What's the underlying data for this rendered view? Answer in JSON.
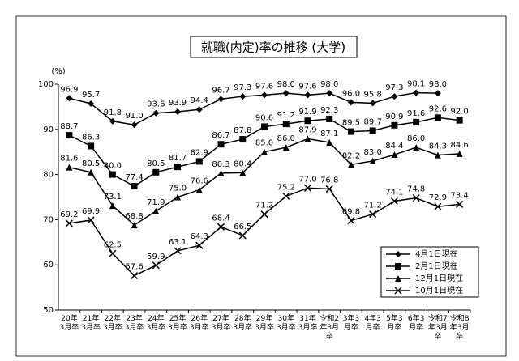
{
  "chart_data": {
    "type": "line",
    "title": "就職(内定)率の推移 (大学)",
    "y_unit": "(%)",
    "categories": [
      "20年3月卒",
      "21年3月卒",
      "22年3月卒",
      "23年3月卒",
      "24年3月卒",
      "25年3月卒",
      "26年3月卒",
      "27年3月卒",
      "28年3月卒",
      "29年3月卒",
      "30年3月卒",
      "31年3月卒",
      "令和2年3月卒",
      "3年3月卒",
      "4年3月卒",
      "5年3月卒",
      "6年3月卒",
      "令和7年3月卒",
      "令和8年3月卒"
    ],
    "series": [
      {
        "name": "4月1日現在",
        "color": "#000000",
        "marker": "diamond",
        "values": [
          96.9,
          95.7,
          91.8,
          91.0,
          93.6,
          93.9,
          94.4,
          96.7,
          97.3,
          97.6,
          98.0,
          97.6,
          98.0,
          96.0,
          95.8,
          97.3,
          98.1,
          98.0,
          null
        ],
        "value_labels": [
          "96.9",
          "95.7",
          "91.8",
          "91.0",
          "93.6",
          "93.9",
          "94.4",
          "96.7",
          "97.3",
          "97.6",
          "98.0",
          "97.6",
          "98.0",
          "96.0",
          "95.8",
          "97.3",
          "98.1",
          "98.0",
          null
        ]
      },
      {
        "name": "2月1日現在",
        "color": "#000000",
        "marker": "square",
        "values": [
          88.7,
          86.3,
          80.0,
          77.4,
          80.5,
          81.7,
          82.9,
          86.7,
          87.8,
          90.6,
          91.2,
          91.9,
          92.3,
          89.5,
          89.7,
          90.9,
          91.6,
          92.6,
          92.0
        ],
        "value_labels": [
          "88.7",
          "86.3",
          "80.0",
          "77.4",
          "80.5",
          "81.7",
          "82.9",
          "86.7",
          "87.8",
          "90.6",
          "91.2",
          "91.9",
          "92.3",
          "89.5",
          "89.7",
          "90.9",
          "91.6",
          "92.6",
          "92.0"
        ]
      },
      {
        "name": "12月1日現在",
        "color": "#000000",
        "marker": "triangle",
        "values": [
          81.6,
          80.5,
          73.1,
          68.8,
          71.9,
          75.0,
          76.6,
          80.3,
          80.4,
          85.0,
          86.0,
          87.9,
          87.1,
          82.2,
          83.0,
          84.4,
          86.0,
          84.3,
          84.6
        ],
        "value_labels": [
          "81.6",
          "80.5",
          "73.1",
          "68.8",
          "71.9",
          "75.0",
          "76.6",
          "80.3",
          "80.4",
          "85.0",
          "86.0",
          "87.9",
          "87.1",
          "82.2",
          "83.0",
          "84.4",
          "86.0",
          "84.3",
          "84.6"
        ]
      },
      {
        "name": "10月1日現在",
        "color": "#000000",
        "marker": "x",
        "values": [
          69.2,
          69.9,
          62.5,
          57.6,
          59.9,
          63.1,
          64.3,
          68.4,
          66.5,
          71.2,
          75.2,
          77.0,
          76.8,
          69.8,
          71.2,
          74.1,
          74.8,
          72.9,
          73.4
        ],
        "value_labels": [
          "69.2",
          "69.9",
          "62.5",
          "57.6",
          "59.9",
          "63.1",
          "64.3",
          "68.4",
          "66.5",
          "71.2",
          "75.2",
          "77.0",
          "76.8",
          "69.8",
          "71.2",
          "74.1",
          "74.8",
          "72.9",
          "73.4"
        ]
      }
    ],
    "ylim": [
      50,
      100
    ],
    "yticks": [
      50,
      60,
      70,
      80,
      90,
      100
    ],
    "grid": false,
    "legend": "lower right"
  }
}
